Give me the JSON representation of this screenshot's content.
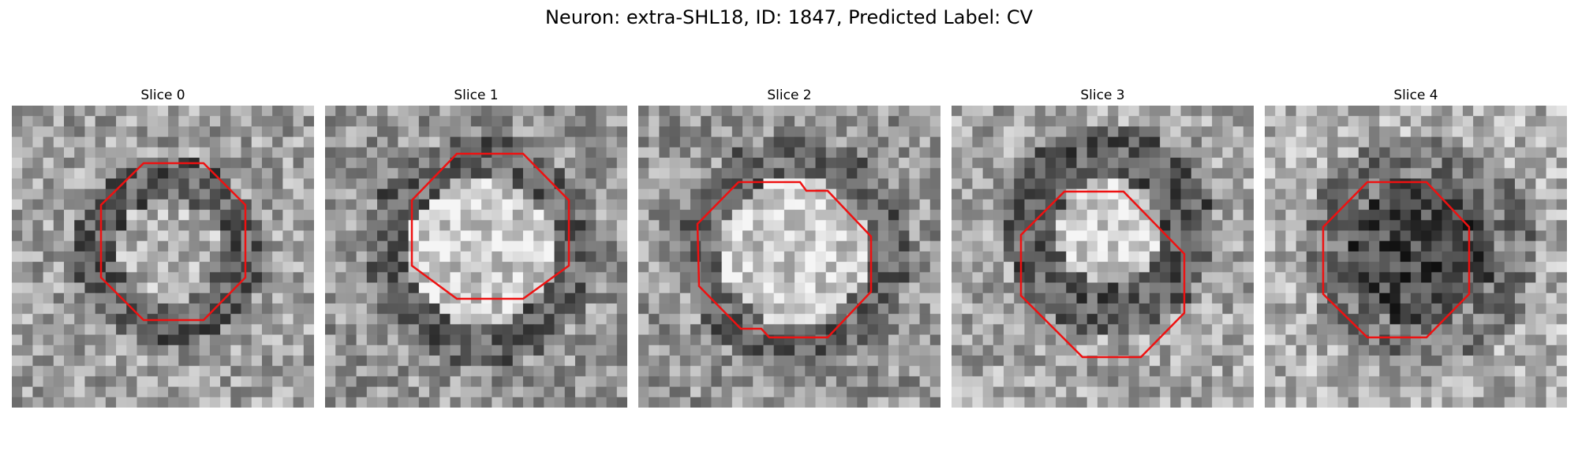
{
  "figure": {
    "title": "Neuron: extra-SHL18, ID: 1847, Predicted Label: CV"
  },
  "panels": [
    {
      "title": "Slice 0",
      "blob": "dark-ring"
    },
    {
      "title": "Slice 1",
      "blob": "bright-center"
    },
    {
      "title": "Slice 2",
      "blob": "bright-center"
    },
    {
      "title": "Slice 3",
      "blob": "bright-top"
    },
    {
      "title": "Slice 4",
      "blob": "dark-center"
    }
  ],
  "style": {
    "contour_color": "#ee1111",
    "colormap": "grayscale"
  }
}
